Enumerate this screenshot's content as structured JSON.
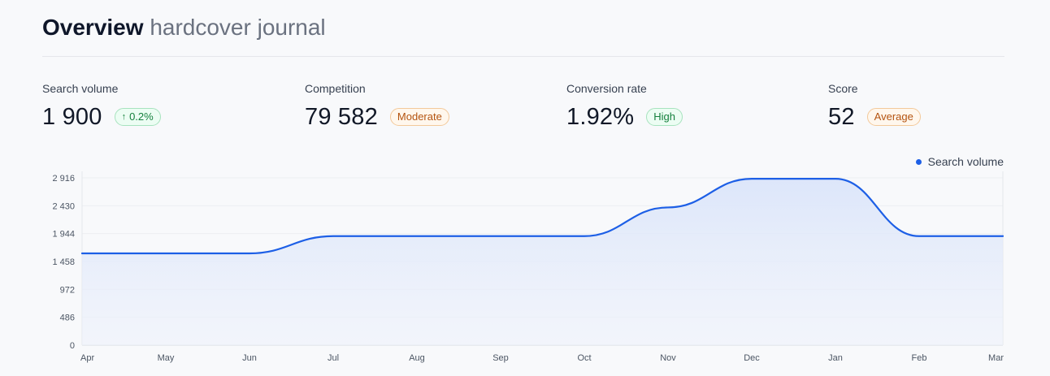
{
  "header": {
    "title": "Overview",
    "keyword": "hardcover journal"
  },
  "metrics": [
    {
      "label": "Search volume",
      "value": "1 900",
      "badge": "0.2%",
      "badge_icon": "arrow-up-icon",
      "badge_color": "#15803d"
    },
    {
      "label": "Competition",
      "value": "79 582",
      "badge": "Moderate",
      "badge_color": "#b4530f"
    },
    {
      "label": "Conversion rate",
      "value": "1.92%",
      "badge": "High",
      "badge_color": "#15803d"
    },
    {
      "label": "Score",
      "value": "52",
      "badge": "Average",
      "badge_color": "#b4530f"
    }
  ],
  "colors": {
    "line": "#1d5fe6",
    "fill": "#e3ebfb"
  },
  "chart_data": {
    "type": "area",
    "title": "",
    "xlabel": "",
    "ylabel": "",
    "x": [
      "Apr",
      "May",
      "Jun",
      "Jul",
      "Aug",
      "Sep",
      "Oct",
      "Nov",
      "Dec",
      "Jan",
      "Feb",
      "Mar"
    ],
    "series": [
      {
        "name": "Search volume",
        "values": [
          1600,
          1600,
          1600,
          1900,
          1900,
          1900,
          1900,
          2400,
          2900,
          2900,
          1900,
          1900
        ]
      }
    ],
    "y_ticks": [
      0,
      486,
      972,
      1458,
      1944,
      2430,
      2916
    ],
    "y_tick_labels": [
      "0",
      "486",
      "972",
      "1 458",
      "1 944",
      "2 430",
      "2 916"
    ],
    "ylim": [
      0,
      2916
    ],
    "legend": "top-right",
    "grid": true
  }
}
